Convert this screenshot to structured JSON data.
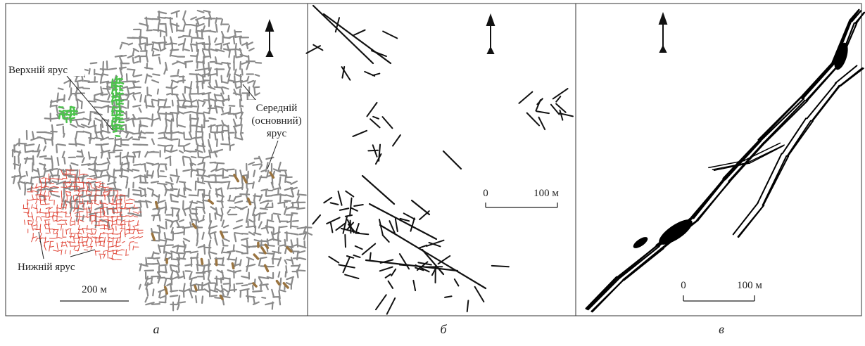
{
  "panels": [
    {
      "caption": "а",
      "labels": [
        "Верхній ярус",
        "Середній",
        "(основний)",
        "ярус",
        "Нижній ярус"
      ],
      "scale": [
        "200 м"
      ]
    },
    {
      "caption": "б",
      "scale": [
        "0",
        "100 м"
      ]
    },
    {
      "caption": "в",
      "scale": [
        "0",
        "100 м"
      ]
    }
  ]
}
